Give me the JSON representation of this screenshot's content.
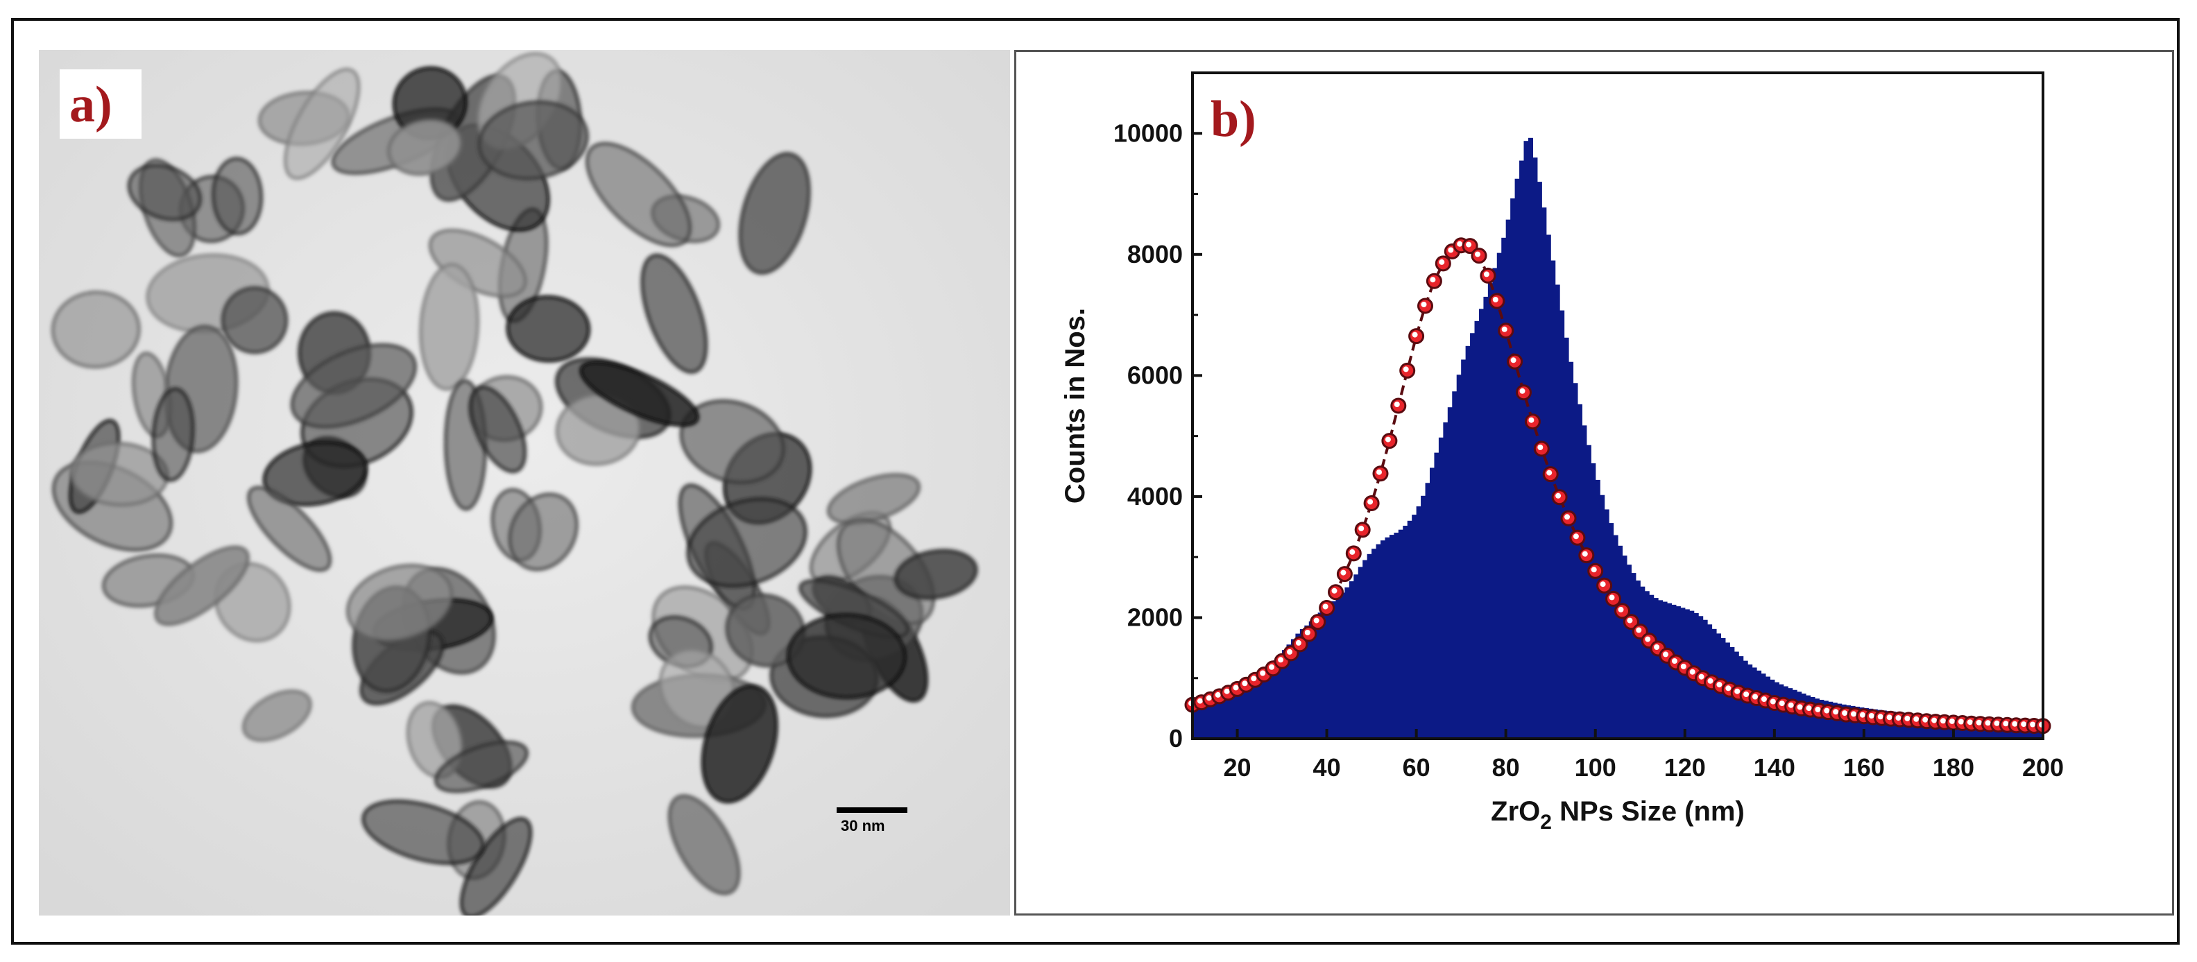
{
  "panel_a": {
    "label": "a)",
    "scale_bar_label": "30 nm"
  },
  "panel_b": {
    "label": "b)"
  },
  "colors": {
    "bar_fill": "#0c1a86",
    "fit_marker_fill": "#e8242b",
    "fit_line": "#5a0b10",
    "panel_label": "#a3191d"
  },
  "chart_data": {
    "type": "bar",
    "xlabel_main": "ZrO",
    "xlabel_sub": "2",
    "xlabel_rest": " NPs Size (nm)",
    "ylabel": "Counts in Nos.",
    "xlim": [
      10,
      200
    ],
    "ylim": [
      0,
      11000
    ],
    "x_ticks": [
      "20",
      "40",
      "60",
      "80",
      "100",
      "120",
      "140",
      "160",
      "180",
      "200"
    ],
    "y_ticks": [
      "0",
      "2000",
      "4000",
      "6000",
      "8000",
      "10000"
    ],
    "histogram": {
      "bin_width": 1,
      "x": [
        10,
        12,
        14,
        16,
        18,
        20,
        22,
        24,
        26,
        28,
        30,
        32,
        34,
        36,
        38,
        40,
        42,
        44,
        46,
        48,
        50,
        52,
        54,
        56,
        58,
        60,
        62,
        64,
        66,
        68,
        70,
        72,
        74,
        76,
        78,
        80,
        82,
        84,
        85,
        86,
        88,
        90,
        92,
        94,
        96,
        98,
        100,
        102,
        104,
        106,
        108,
        110,
        112,
        114,
        116,
        118,
        120,
        122,
        124,
        126,
        128,
        130,
        132,
        134,
        136,
        138,
        140,
        142,
        144,
        146,
        148,
        150,
        155,
        160,
        165,
        170,
        175,
        180,
        185,
        190,
        195,
        200
      ],
      "counts": [
        500,
        550,
        600,
        650,
        720,
        800,
        880,
        980,
        1100,
        1250,
        1420,
        1600,
        1780,
        1900,
        2050,
        2180,
        2300,
        2450,
        2650,
        2900,
        3100,
        3250,
        3350,
        3420,
        3550,
        3750,
        4100,
        4600,
        5100,
        5600,
        6150,
        6600,
        7000,
        7400,
        7900,
        8400,
        9100,
        9700,
        10050,
        9800,
        9000,
        8100,
        7300,
        6400,
        5700,
        5000,
        4400,
        3900,
        3450,
        3100,
        2800,
        2550,
        2400,
        2300,
        2250,
        2200,
        2150,
        2100,
        2000,
        1850,
        1700,
        1550,
        1400,
        1250,
        1150,
        1050,
        950,
        880,
        820,
        760,
        700,
        650,
        570,
        510,
        460,
        420,
        390,
        360,
        340,
        320,
        305,
        290
      ]
    },
    "fit": {
      "name": "",
      "x": [
        10,
        12,
        14,
        16,
        18,
        20,
        22,
        24,
        26,
        28,
        30,
        32,
        34,
        36,
        38,
        40,
        42,
        44,
        46,
        48,
        50,
        52,
        54,
        56,
        58,
        60,
        62,
        64,
        66,
        68,
        70,
        72,
        74,
        76,
        78,
        80,
        82,
        84,
        86,
        88,
        90,
        92,
        94,
        96,
        98,
        100,
        102,
        104,
        106,
        108,
        110,
        112,
        114,
        116,
        118,
        120,
        122,
        124,
        126,
        128,
        130,
        132,
        134,
        136,
        138,
        140,
        142,
        144,
        146,
        148,
        150,
        152,
        154,
        156,
        158,
        160,
        162,
        164,
        166,
        168,
        170,
        172,
        174,
        176,
        178,
        180,
        182,
        184,
        186,
        188,
        190,
        192,
        194,
        196,
        198,
        200
      ],
      "y": [
        560,
        600,
        650,
        700,
        760,
        820,
        890,
        970,
        1060,
        1160,
        1280,
        1410,
        1560,
        1730,
        1930,
        2160,
        2420,
        2720,
        3060,
        3450,
        3890,
        4380,
        4920,
        5500,
        6080,
        6650,
        7150,
        7560,
        7850,
        8050,
        8150,
        8140,
        7980,
        7650,
        7230,
        6740,
        6230,
        5720,
        5240,
        4790,
        4370,
        3990,
        3640,
        3320,
        3030,
        2770,
        2530,
        2310,
        2110,
        1930,
        1770,
        1620,
        1490,
        1370,
        1260,
        1170,
        1080,
        1000,
        930,
        870,
        810,
        760,
        710,
        670,
        630,
        590,
        560,
        530,
        500,
        480,
        460,
        440,
        420,
        400,
        385,
        370,
        355,
        340,
        330,
        320,
        310,
        300,
        290,
        280,
        272,
        265,
        258,
        250,
        243,
        237,
        232,
        226,
        221,
        216,
        212,
        208
      ]
    }
  }
}
